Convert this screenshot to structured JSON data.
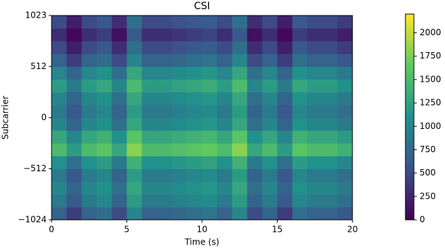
{
  "chart_data": {
    "type": "heatmap",
    "title": "CSI",
    "xlabel": "Time (s)",
    "ylabel": "Subcarrier",
    "xlim": [
      0,
      20
    ],
    "ylim": [
      -1024,
      1023
    ],
    "xticks": [
      0,
      5,
      10,
      15,
      20
    ],
    "yticks": [
      {
        "value": -1024,
        "label": "−1024"
      },
      {
        "value": -512,
        "label": "−512"
      },
      0,
      512,
      1023
    ],
    "xbins": [
      0,
      1,
      2,
      3,
      4,
      5,
      6,
      7,
      8,
      9,
      10,
      11,
      12,
      13,
      14,
      15,
      16,
      17,
      18,
      19,
      20
    ],
    "ybins": [
      -1024,
      -896,
      -768,
      -640,
      -512,
      -384,
      -256,
      -128,
      0,
      128,
      256,
      384,
      512,
      640,
      768,
      896,
      1023
    ],
    "colormap": "viridis",
    "clim": [
      0,
      2200
    ],
    "cticks": [
      0,
      250,
      500,
      750,
      1000,
      1250,
      1500,
      1750,
      2000
    ],
    "z": [
      [
        700,
        400,
        700,
        800,
        500,
        1000,
        700,
        700,
        750,
        800,
        850,
        700,
        1000,
        500,
        700,
        400,
        800,
        700,
        700,
        600
      ],
      [
        900,
        600,
        900,
        1000,
        700,
        1200,
        900,
        900,
        950,
        1000,
        1050,
        900,
        1200,
        700,
        900,
        600,
        1000,
        900,
        900,
        800
      ],
      [
        1000,
        700,
        1000,
        1100,
        800,
        1300,
        1000,
        1000,
        1050,
        1100,
        1150,
        1000,
        1300,
        800,
        1000,
        700,
        1100,
        1000,
        1000,
        900
      ],
      [
        900,
        600,
        900,
        1000,
        700,
        1200,
        900,
        900,
        950,
        1000,
        1050,
        900,
        1200,
        700,
        900,
        600,
        1000,
        900,
        900,
        800
      ],
      [
        1100,
        800,
        1100,
        1200,
        900,
        1400,
        1100,
        1100,
        1150,
        1200,
        1250,
        1100,
        1400,
        900,
        1100,
        800,
        1200,
        1100,
        1100,
        1000
      ],
      [
        1500,
        1200,
        1500,
        1600,
        1300,
        1800,
        1500,
        1500,
        1550,
        1600,
        1650,
        1500,
        1800,
        1300,
        1500,
        1200,
        1600,
        1500,
        1500,
        1400
      ],
      [
        1300,
        1000,
        1300,
        1400,
        1100,
        1600,
        1300,
        1300,
        1350,
        1400,
        1450,
        1300,
        1600,
        1100,
        1300,
        1000,
        1400,
        1300,
        1300,
        1200
      ],
      [
        1000,
        700,
        1000,
        1100,
        800,
        1300,
        1000,
        1000,
        1050,
        1100,
        1150,
        1000,
        1300,
        800,
        1000,
        700,
        1100,
        1000,
        1000,
        900
      ],
      [
        900,
        600,
        900,
        1000,
        700,
        1200,
        900,
        900,
        950,
        1000,
        1050,
        900,
        1200,
        700,
        900,
        600,
        1000,
        900,
        900,
        800
      ],
      [
        1000,
        700,
        1000,
        1100,
        800,
        1300,
        1000,
        1000,
        1050,
        1100,
        1150,
        1000,
        1300,
        800,
        1000,
        700,
        1100,
        1000,
        1000,
        900
      ],
      [
        1200,
        900,
        1200,
        1300,
        1000,
        1500,
        1200,
        1200,
        1250,
        1300,
        1350,
        1200,
        1500,
        1000,
        1200,
        900,
        1300,
        1200,
        1200,
        1100
      ],
      [
        1000,
        700,
        1000,
        1100,
        800,
        1300,
        1000,
        1000,
        1050,
        1100,
        1150,
        1000,
        1300,
        800,
        1000,
        700,
        1100,
        1000,
        1000,
        900
      ],
      [
        700,
        400,
        700,
        800,
        500,
        1000,
        700,
        700,
        750,
        800,
        850,
        700,
        1000,
        500,
        700,
        400,
        800,
        700,
        700,
        600
      ],
      [
        500,
        200,
        500,
        600,
        300,
        800,
        500,
        500,
        550,
        600,
        650,
        500,
        800,
        300,
        500,
        200,
        600,
        500,
        500,
        400
      ],
      [
        300,
        50,
        300,
        400,
        100,
        600,
        300,
        300,
        350,
        400,
        450,
        300,
        600,
        100,
        300,
        50,
        400,
        300,
        300,
        200
      ],
      [
        500,
        200,
        500,
        600,
        300,
        800,
        500,
        500,
        550,
        600,
        650,
        500,
        800,
        300,
        500,
        200,
        600,
        500,
        500,
        400
      ]
    ]
  }
}
